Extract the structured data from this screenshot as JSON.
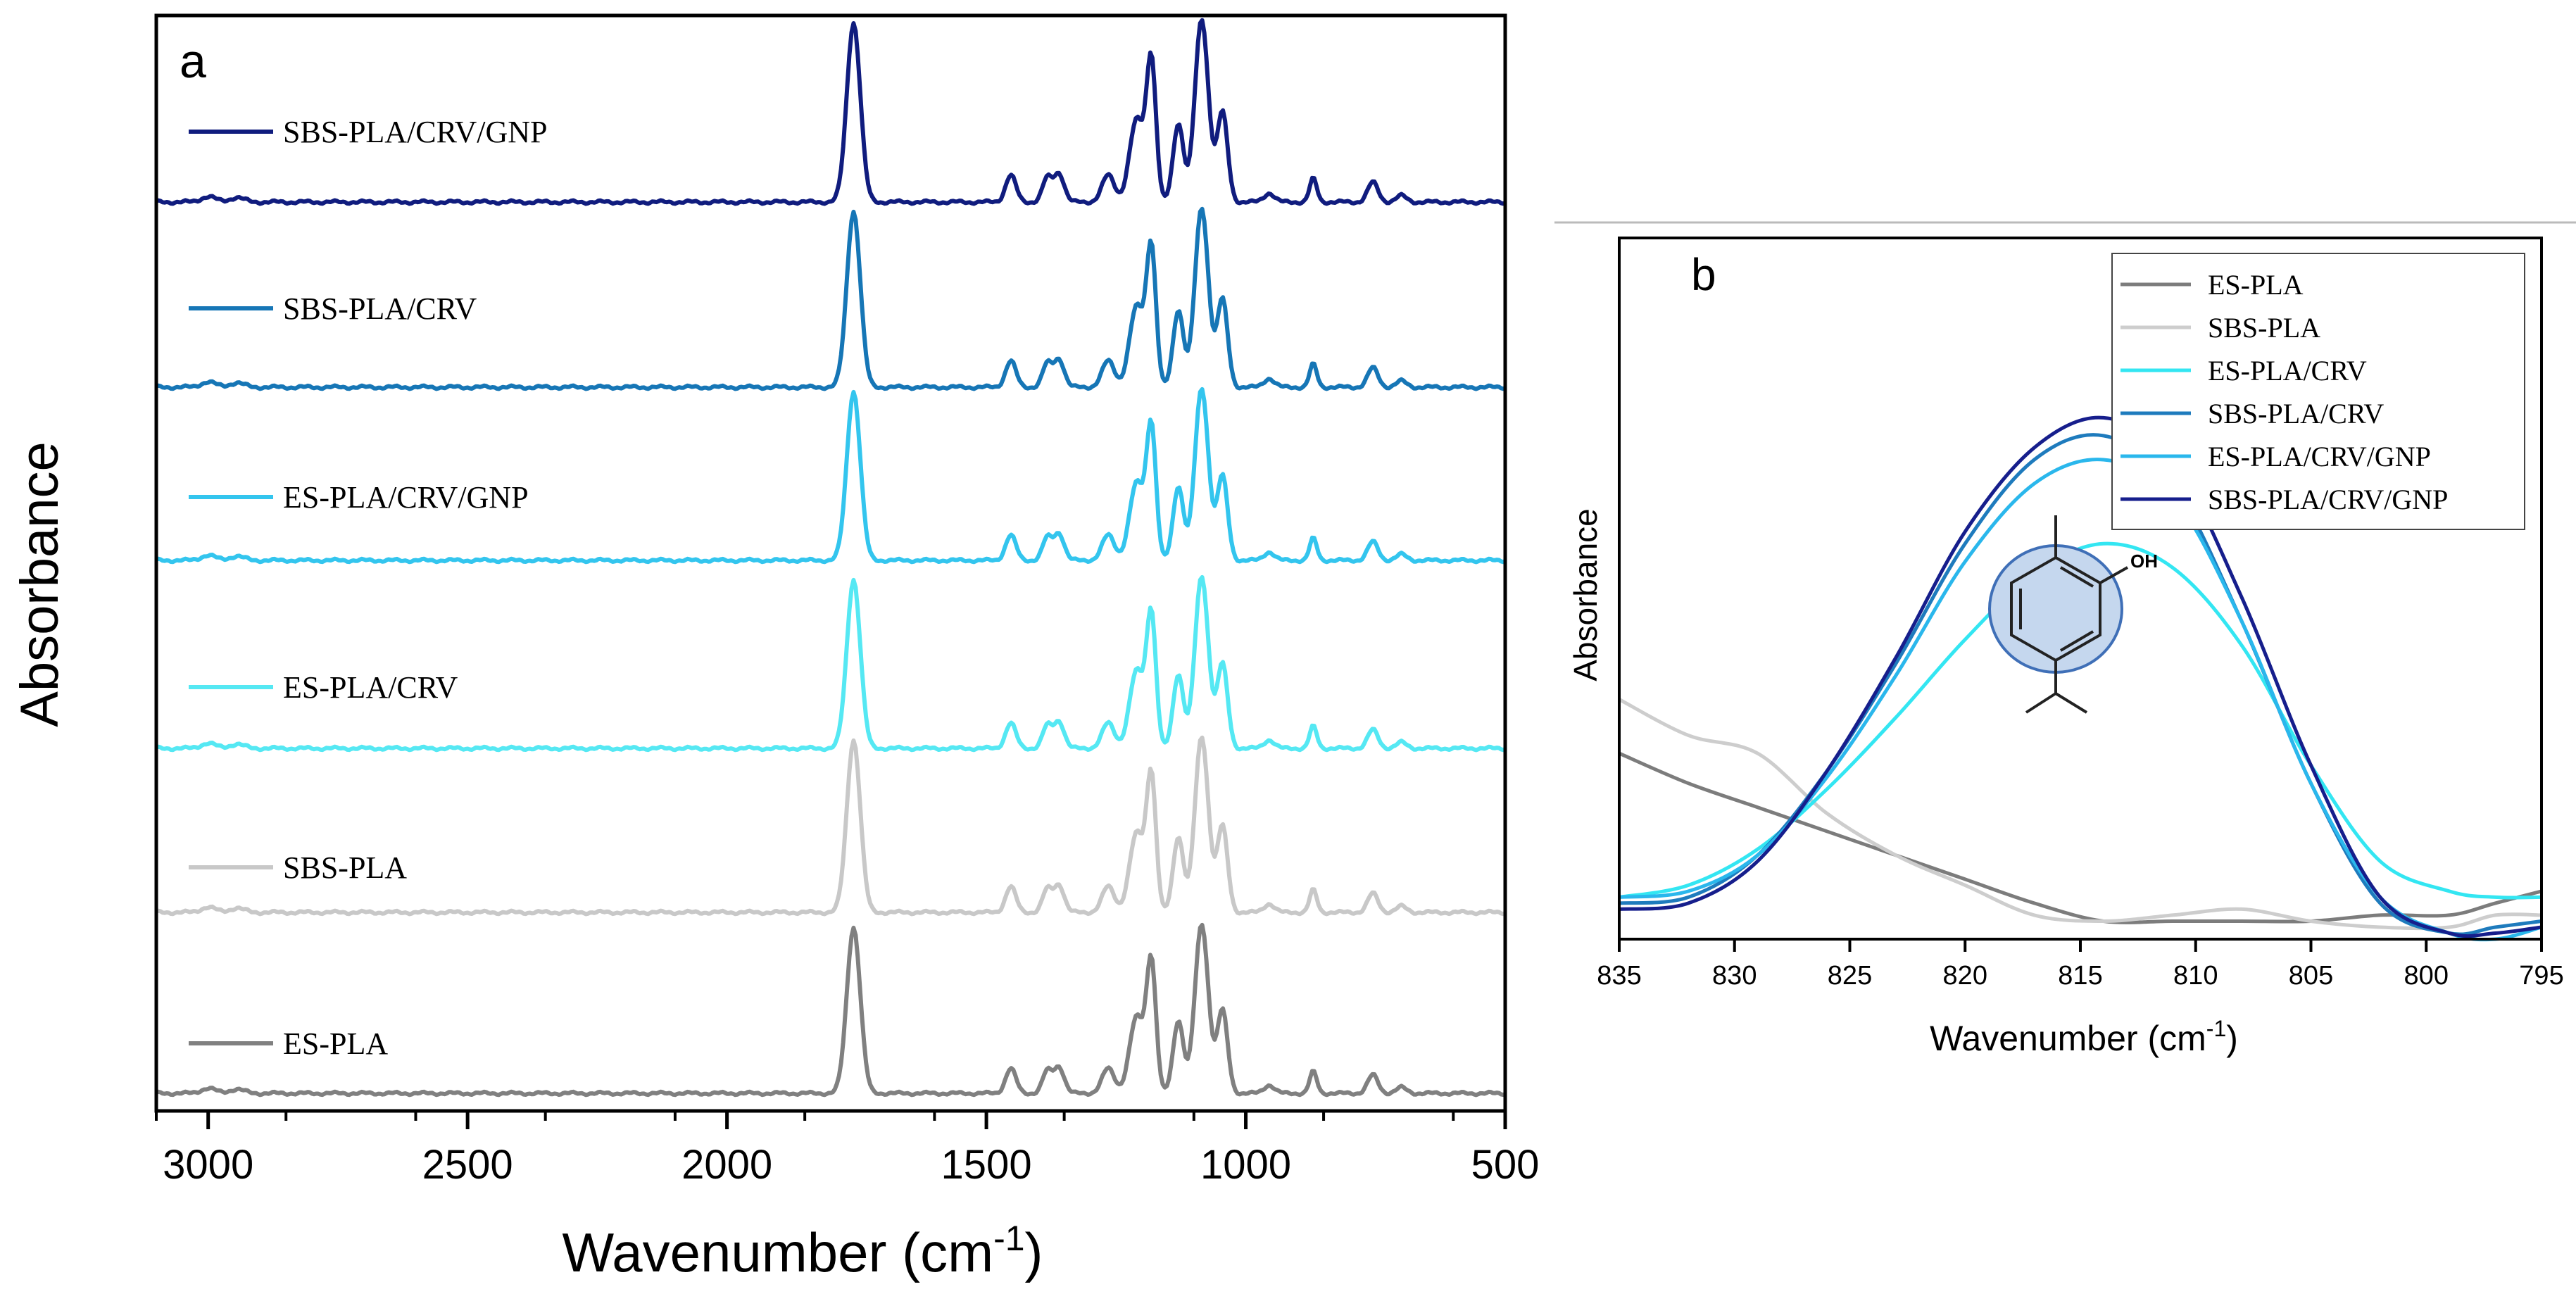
{
  "chart_data": [
    {
      "panel": "a",
      "type": "line",
      "title": "",
      "panel_label": "a",
      "xlabel": "Wavenumber (cm",
      "xlabel_sup": "-1",
      "xlabel_end": ")",
      "ylabel": "Absorbance",
      "xlim": [
        3100,
        500
      ],
      "xticks": [
        3000,
        2500,
        2000,
        1500,
        1000,
        500
      ],
      "xtick_labels": [
        "3000",
        "2500",
        "2000",
        "1500",
        "1000",
        "500"
      ],
      "grid": false,
      "legend_placement": "inline-left-of-each-trace",
      "peaks_cm-1": [
        3000,
        2945,
        1756,
        1453,
        1383,
        1360,
        1265,
        1210,
        1182,
        1130,
        1085,
        1045,
        955,
        870,
        755,
        700
      ],
      "series": [
        {
          "name": "SBS-PLA/CRV/GNP",
          "color": "#101c7e",
          "offset": 5,
          "amplitude": 0.9
        },
        {
          "name": "SBS-PLA/CRV",
          "color": "#1676b6",
          "offset": 4,
          "amplitude": 0.9
        },
        {
          "name": "ES-PLA/CRV/GNP",
          "color": "#33c5ee",
          "offset": 3,
          "amplitude": 0.9
        },
        {
          "name": "ES-PLA/CRV",
          "color": "#55e8f3",
          "offset": 2,
          "amplitude": 0.9
        },
        {
          "name": "SBS-PLA",
          "color": "#c8c8c8",
          "offset": 1,
          "amplitude": 0.9
        },
        {
          "name": "ES-PLA",
          "color": "#808080",
          "offset": 0,
          "amplitude": 0.9
        }
      ]
    },
    {
      "panel": "b",
      "type": "line",
      "title": "",
      "panel_label": "b",
      "xlabel": "Wavenumber (cm",
      "xlabel_sup": "-1",
      "xlabel_end": ")",
      "ylabel": "Absorbance",
      "xlim": [
        835,
        795
      ],
      "xticks": [
        835,
        830,
        825,
        820,
        815,
        810,
        805,
        800,
        795
      ],
      "xtick_labels": [
        "835",
        "830",
        "825",
        "820",
        "815",
        "810",
        "805",
        "800",
        "795"
      ],
      "ylim": [
        -0.02,
        1.15
      ],
      "grid": false,
      "legend_placement": "top-right",
      "inset_structure": "carvacrol",
      "inset_label": "OH",
      "x": [
        835,
        832,
        829,
        826,
        823,
        820,
        817,
        814,
        811,
        808,
        805,
        802,
        799,
        797,
        795
      ],
      "series": [
        {
          "name": "ES-PLA",
          "color": "#7c7c7c",
          "values": [
            0.29,
            0.24,
            0.2,
            0.16,
            0.12,
            0.08,
            0.04,
            0.01,
            0.01,
            0.01,
            0.01,
            0.02,
            0.02,
            0.04,
            0.06
          ]
        },
        {
          "name": "SBS-PLA",
          "color": "#cdcdcd",
          "values": [
            0.38,
            0.32,
            0.29,
            0.19,
            0.12,
            0.07,
            0.02,
            0.01,
            0.02,
            0.03,
            0.01,
            0.0,
            0.0,
            0.02,
            0.02
          ]
        },
        {
          "name": "ES-PLA/CRV",
          "color": "#33e6f2",
          "values": [
            0.05,
            0.07,
            0.13,
            0.23,
            0.35,
            0.48,
            0.59,
            0.64,
            0.6,
            0.47,
            0.27,
            0.11,
            0.06,
            0.05,
            0.05
          ]
        },
        {
          "name": "SBS-PLA/CRV",
          "color": "#1e7bbd",
          "values": [
            0.04,
            0.05,
            0.12,
            0.26,
            0.44,
            0.64,
            0.78,
            0.82,
            0.74,
            0.51,
            0.24,
            0.04,
            -0.01,
            0.0,
            0.01
          ]
        },
        {
          "name": "ES-PLA/CRV/GNP",
          "color": "#2ab7ec",
          "values": [
            0.05,
            0.06,
            0.12,
            0.25,
            0.42,
            0.61,
            0.74,
            0.78,
            0.72,
            0.51,
            0.24,
            0.05,
            -0.01,
            -0.02,
            0.0
          ]
        },
        {
          "name": "SBS-PLA/CRV/GNP",
          "color": "#161e8c",
          "values": [
            0.03,
            0.04,
            0.11,
            0.26,
            0.45,
            0.66,
            0.8,
            0.85,
            0.78,
            0.55,
            0.27,
            0.05,
            -0.01,
            -0.01,
            0.0
          ]
        }
      ]
    }
  ]
}
